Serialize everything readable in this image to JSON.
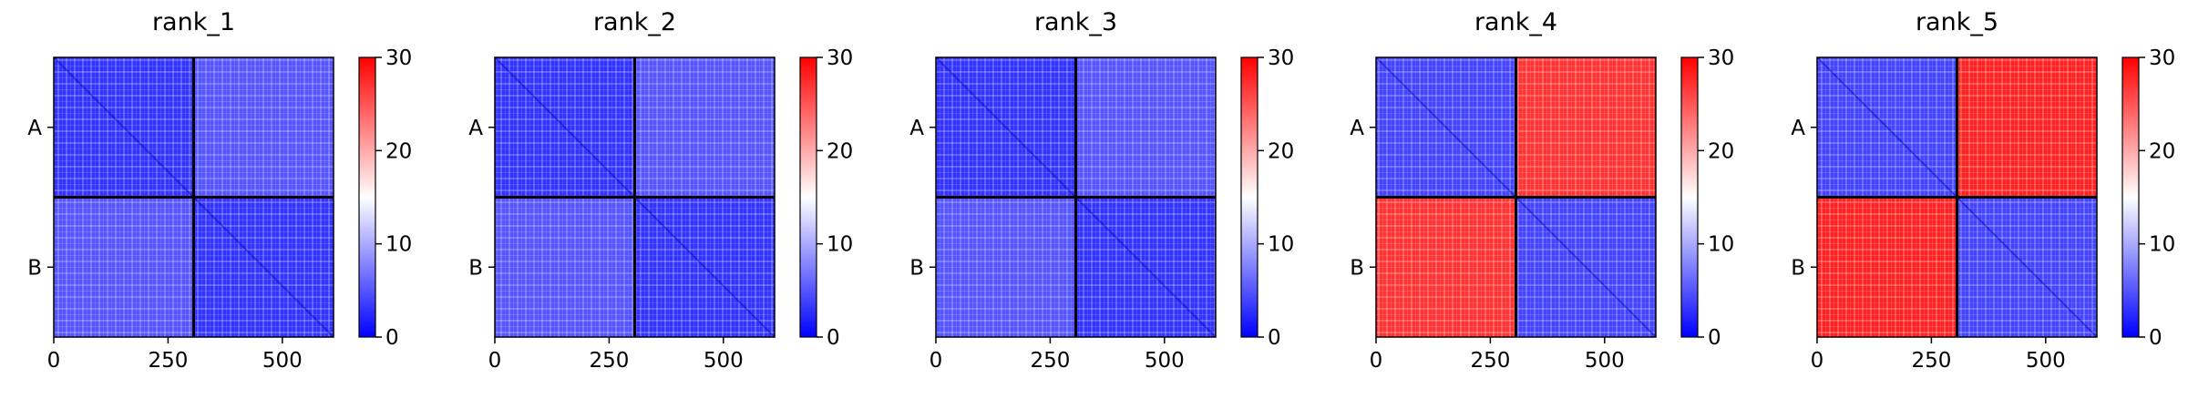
{
  "chart_data": {
    "type": "heatmap",
    "colormap": {
      "name": "bwr",
      "low": "#0000ff",
      "mid": "#ffffff",
      "high": "#ff0000"
    },
    "color_range": [
      0,
      30
    ],
    "colorbar_ticks": [
      "0",
      "10",
      "20",
      "30"
    ],
    "x_ticks": [
      {
        "value": 0,
        "label": "0"
      },
      {
        "value": 250,
        "label": "250"
      },
      {
        "value": 500,
        "label": "500"
      }
    ],
    "xlim": [
      0,
      612
    ],
    "chains": [
      {
        "label": "A",
        "start": 0,
        "end": 306
      },
      {
        "label": "B",
        "start": 306,
        "end": 612
      }
    ],
    "panels": [
      {
        "title": "rank_1",
        "intra_chain_pae": 3,
        "inter_chain_pae": 5
      },
      {
        "title": "rank_2",
        "intra_chain_pae": 3,
        "inter_chain_pae": 5
      },
      {
        "title": "rank_3",
        "intra_chain_pae": 3,
        "inter_chain_pae": 5
      },
      {
        "title": "rank_4",
        "intra_chain_pae": 4,
        "inter_chain_pae": 27
      },
      {
        "title": "rank_5",
        "intra_chain_pae": 4,
        "inter_chain_pae": 28
      }
    ]
  }
}
